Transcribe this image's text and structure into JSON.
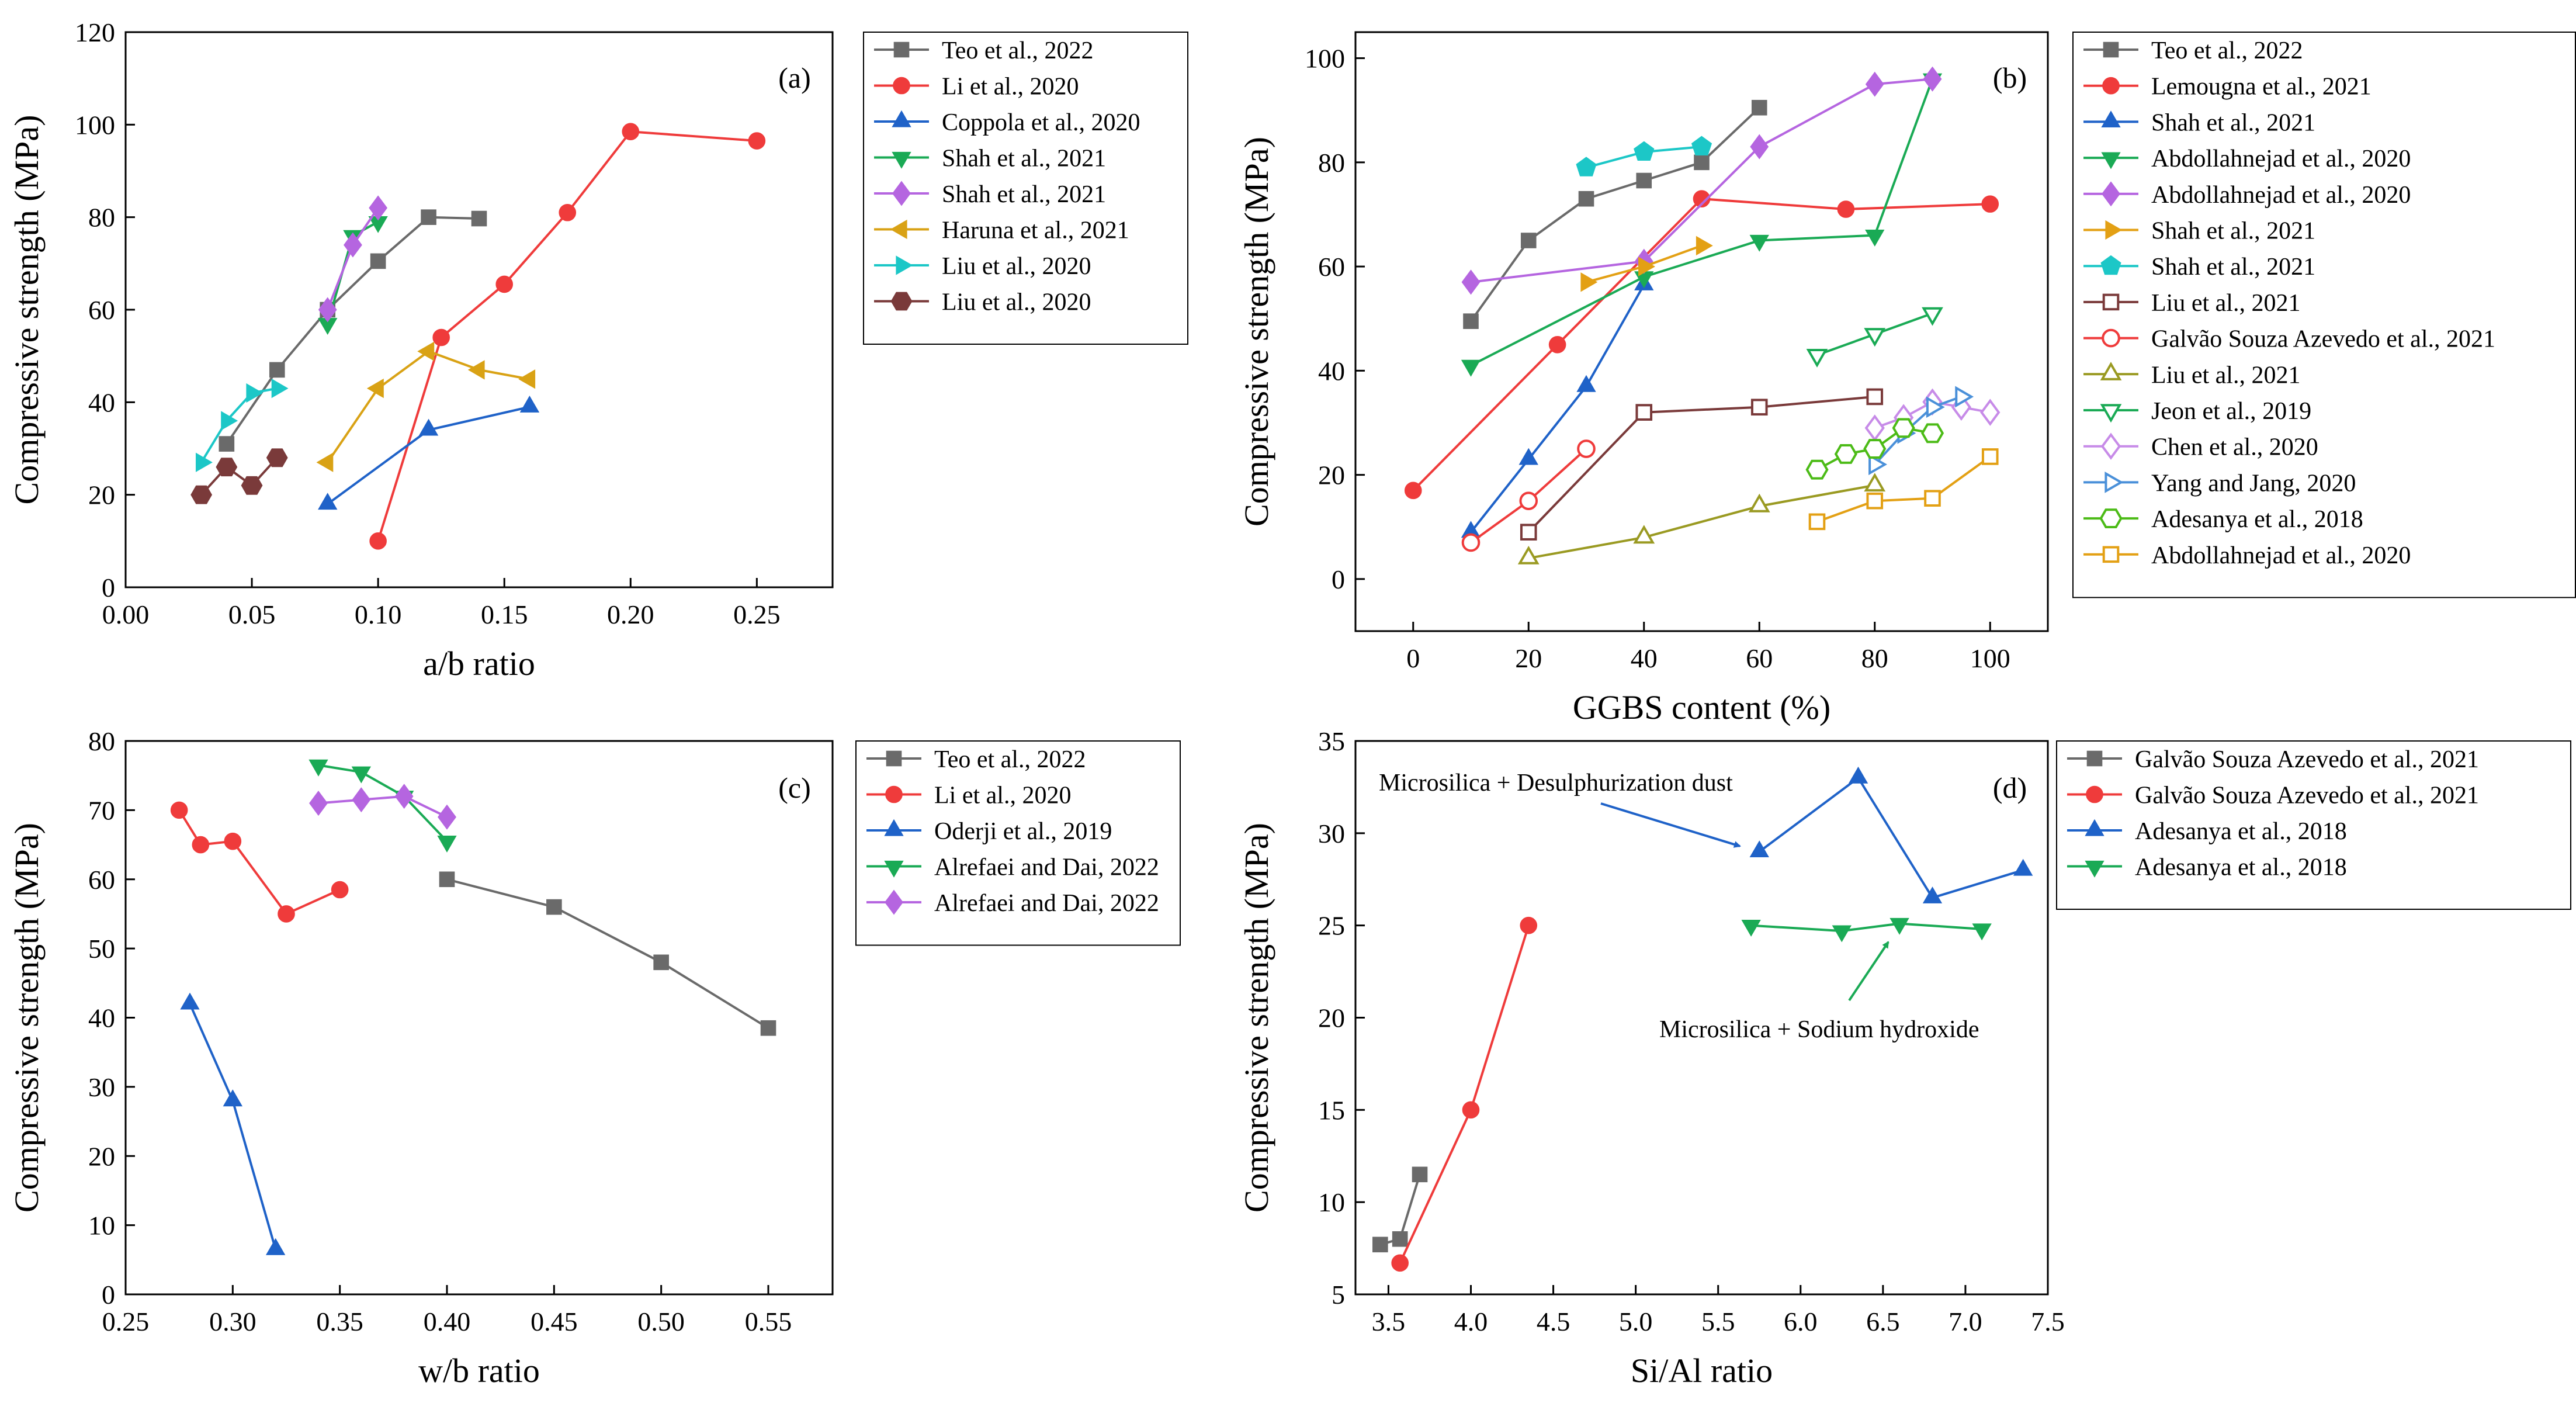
{
  "chart_data": [
    {
      "type": "line",
      "panel_label": "(a)",
      "xlabel": "a/b ratio",
      "ylabel": "Compressive strength (MPa)",
      "xlim": [
        0.0,
        0.28
      ],
      "ylim": [
        0,
        120
      ],
      "xticks": [
        0.0,
        0.05,
        0.1,
        0.15,
        0.2,
        0.25
      ],
      "xtick_labels": [
        "0.00",
        "0.05",
        "0.10",
        "0.15",
        "0.20",
        "0.25"
      ],
      "yticks": [
        0,
        20,
        40,
        60,
        80,
        100,
        120
      ],
      "ytick_labels": [
        "0",
        "20",
        "40",
        "60",
        "80",
        "100",
        "120"
      ],
      "series": [
        {
          "name": "Teo et al., 2022",
          "color": "#6a6a6a",
          "marker": "square",
          "fill": true,
          "x": [
            0.04,
            0.06,
            0.08,
            0.1,
            0.12,
            0.14
          ],
          "y": [
            31,
            47,
            60,
            70.5,
            80,
            79.7
          ]
        },
        {
          "name": "Li et al., 2020",
          "color": "#ef3b3b",
          "marker": "circle",
          "fill": true,
          "x": [
            0.1,
            0.125,
            0.15,
            0.175,
            0.2,
            0.25
          ],
          "y": [
            10,
            54,
            65.5,
            81,
            98.5,
            96.5
          ]
        },
        {
          "name": "Coppola et al., 2020",
          "color": "#1f62c8",
          "marker": "triangle-up",
          "fill": true,
          "x": [
            0.08,
            0.12,
            0.16
          ],
          "y": [
            18,
            34,
            39
          ]
        },
        {
          "name": "Shah et al., 2021",
          "color": "#1aaa55",
          "marker": "triangle-down",
          "fill": true,
          "x": [
            0.08,
            0.09,
            0.1
          ],
          "y": [
            57,
            76,
            79
          ]
        },
        {
          "name": "Shah et al., 2021",
          "color": "#b565e0",
          "marker": "diamond",
          "fill": true,
          "x": [
            0.08,
            0.09,
            0.1
          ],
          "y": [
            60,
            74,
            82
          ]
        },
        {
          "name": "Haruna et al., 2021",
          "color": "#d9a215",
          "marker": "triangle-left",
          "fill": true,
          "x": [
            0.08,
            0.1,
            0.12,
            0.14,
            0.16
          ],
          "y": [
            27,
            43,
            51,
            47,
            45
          ]
        },
        {
          "name": "Liu et al., 2020",
          "color": "#1cc7c7",
          "marker": "triangle-right",
          "fill": true,
          "x": [
            0.03,
            0.04,
            0.05,
            0.06
          ],
          "y": [
            27,
            36,
            42,
            43
          ]
        },
        {
          "name": "Liu et al., 2020",
          "color": "#7a3a3a",
          "marker": "hexagon",
          "fill": true,
          "x": [
            0.03,
            0.04,
            0.05,
            0.06
          ],
          "y": [
            20,
            26,
            22,
            28
          ]
        }
      ]
    },
    {
      "type": "line",
      "panel_label": "(b)",
      "xlabel": "GGBS content (%)",
      "ylabel": "Compressive strength (MPa)",
      "xlim": [
        -10,
        110
      ],
      "ylim": [
        -10,
        105
      ],
      "xticks": [
        0,
        20,
        40,
        60,
        80,
        100
      ],
      "xtick_labels": [
        "0",
        "20",
        "40",
        "60",
        "80",
        "100"
      ],
      "yticks": [
        0,
        20,
        40,
        60,
        80,
        100
      ],
      "ytick_labels": [
        "0",
        "20",
        "40",
        "60",
        "80",
        "100"
      ],
      "series": [
        {
          "name": "Teo et al., 2022",
          "color": "#6a6a6a",
          "marker": "square",
          "fill": true,
          "x": [
            10,
            20,
            30,
            40,
            50,
            60
          ],
          "y": [
            49.5,
            65,
            73,
            76.5,
            80,
            90.5
          ]
        },
        {
          "name": "Lemougna et al., 2021",
          "color": "#ef3b3b",
          "marker": "circle",
          "fill": true,
          "x": [
            0,
            25,
            50,
            75,
            100
          ],
          "y": [
            17,
            45,
            73,
            71,
            72
          ]
        },
        {
          "name": "Shah et al., 2021",
          "color": "#1f62c8",
          "marker": "triangle-up",
          "fill": true,
          "x": [
            10,
            20,
            30,
            40
          ],
          "y": [
            9,
            23,
            37,
            56.5
          ]
        },
        {
          "name": "Abdollahnejad et al., 2020",
          "color": "#1aaa55",
          "marker": "triangle-down",
          "fill": true,
          "x": [
            10,
            40,
            60,
            80,
            90
          ],
          "y": [
            41,
            58,
            65,
            66,
            96
          ]
        },
        {
          "name": "Abdollahnejad et al., 2020",
          "color": "#b565e0",
          "marker": "diamond",
          "fill": true,
          "x": [
            10,
            40,
            60,
            80,
            90
          ],
          "y": [
            57,
            61,
            83,
            95,
            96
          ]
        },
        {
          "name": "Shah et al., 2021",
          "color": "#e3a014",
          "marker": "triangle-right",
          "fill": true,
          "x": [
            30,
            40,
            50
          ],
          "y": [
            57,
            60,
            64
          ]
        },
        {
          "name": "Shah et al., 2021",
          "color": "#1cc7c7",
          "marker": "pentagon",
          "fill": true,
          "x": [
            30,
            40,
            50
          ],
          "y": [
            79,
            82,
            83
          ]
        },
        {
          "name": "Liu et al., 2021",
          "color": "#7a3a3a",
          "marker": "square",
          "fill": false,
          "x": [
            20,
            40,
            60,
            80
          ],
          "y": [
            9,
            32,
            33,
            35
          ]
        },
        {
          "name": "Galvão Souza Azevedo et al., 2021",
          "color": "#ef3b3b",
          "marker": "circle",
          "fill": false,
          "x": [
            10,
            20,
            30
          ],
          "y": [
            7,
            15,
            25
          ]
        },
        {
          "name": "Liu et al., 2021",
          "color": "#9a9a22",
          "marker": "triangle-up",
          "fill": false,
          "x": [
            20,
            40,
            60,
            80
          ],
          "y": [
            4,
            8,
            14,
            18
          ]
        },
        {
          "name": "Jeon et al., 2019",
          "color": "#1aaa55",
          "marker": "triangle-down",
          "fill": false,
          "x": [
            70,
            80,
            90
          ],
          "y": [
            43,
            47,
            51
          ]
        },
        {
          "name": "Chen et al., 2020",
          "color": "#c78be8",
          "marker": "diamond",
          "fill": false,
          "x": [
            80,
            85,
            90,
            95,
            100
          ],
          "y": [
            29,
            31,
            34,
            33,
            32
          ]
        },
        {
          "name": "Yang and Jang, 2020",
          "color": "#4a90d9",
          "marker": "triangle-right",
          "fill": false,
          "x": [
            80,
            85,
            90,
            95
          ],
          "y": [
            22,
            28,
            33,
            35
          ]
        },
        {
          "name": "Adesanya et al., 2018",
          "color": "#4cbb17",
          "marker": "hexagon",
          "fill": false,
          "x": [
            70,
            75,
            80,
            85,
            90
          ],
          "y": [
            21,
            24,
            25,
            29,
            28
          ]
        },
        {
          "name": "Abdollahnejad et al., 2020",
          "color": "#e3a014",
          "marker": "square",
          "fill": false,
          "x": [
            70,
            80,
            90,
            100
          ],
          "y": [
            11,
            15,
            15.5,
            23.5
          ]
        }
      ]
    },
    {
      "type": "line",
      "panel_label": "(c)",
      "xlabel": "w/b ratio",
      "ylabel": "Compressive strength (MPa)",
      "xlim": [
        0.25,
        0.58
      ],
      "ylim": [
        0,
        80
      ],
      "xticks": [
        0.25,
        0.3,
        0.35,
        0.4,
        0.45,
        0.5,
        0.55
      ],
      "xtick_labels": [
        "0.25",
        "0.30",
        "0.35",
        "0.40",
        "0.45",
        "0.50",
        "0.55"
      ],
      "yticks": [
        0,
        10,
        20,
        30,
        40,
        50,
        60,
        70,
        80
      ],
      "ytick_labels": [
        "0",
        "10",
        "20",
        "30",
        "40",
        "50",
        "60",
        "70",
        "80"
      ],
      "series": [
        {
          "name": "Teo et al., 2022",
          "color": "#6a6a6a",
          "marker": "square",
          "fill": true,
          "x": [
            0.4,
            0.45,
            0.5,
            0.55
          ],
          "y": [
            60,
            56,
            48,
            38.5
          ]
        },
        {
          "name": "Li et al., 2020",
          "color": "#ef3b3b",
          "marker": "circle",
          "fill": true,
          "x": [
            0.275,
            0.285,
            0.3,
            0.325,
            0.35
          ],
          "y": [
            70,
            65,
            65.5,
            55,
            58.5
          ]
        },
        {
          "name": "Oderji et al., 2019",
          "color": "#1f62c8",
          "marker": "triangle-up",
          "fill": true,
          "x": [
            0.28,
            0.3,
            0.32
          ],
          "y": [
            42,
            28,
            6.5
          ]
        },
        {
          "name": "Alrefaei and Dai, 2022",
          "color": "#1aaa55",
          "marker": "triangle-down",
          "fill": true,
          "x": [
            0.34,
            0.36,
            0.38,
            0.4
          ],
          "y": [
            76.5,
            75.5,
            72,
            65.5
          ]
        },
        {
          "name": "Alrefaei and Dai, 2022",
          "color": "#b565e0",
          "marker": "diamond",
          "fill": true,
          "x": [
            0.34,
            0.36,
            0.38,
            0.4
          ],
          "y": [
            71,
            71.5,
            72,
            69
          ]
        }
      ]
    },
    {
      "type": "line",
      "panel_label": "(d)",
      "xlabel": "Si/Al ratio",
      "ylabel": "Compressive strength (MPa)",
      "xlim": [
        3.3,
        7.5
      ],
      "ylim": [
        5,
        35
      ],
      "xticks": [
        3.5,
        4.0,
        4.5,
        5.0,
        5.5,
        6.0,
        6.5,
        7.0,
        7.5
      ],
      "xtick_labels": [
        "3.5",
        "4.0",
        "4.5",
        "5.0",
        "5.5",
        "6.0",
        "6.5",
        "7.0",
        "7.5"
      ],
      "yticks": [
        5,
        10,
        15,
        20,
        25,
        30,
        35
      ],
      "ytick_labels": [
        "5",
        "10",
        "15",
        "20",
        "25",
        "30",
        "35"
      ],
      "annotations": [
        {
          "text": "Microsilica + Desulphurization dust"
        },
        {
          "text": "Microsilica + Sodium hydroxide"
        }
      ],
      "series": [
        {
          "name": "Galvão Souza Azevedo et al., 2021",
          "color": "#6a6a6a",
          "marker": "square",
          "fill": true,
          "x": [
            3.45,
            3.57,
            3.69
          ],
          "y": [
            7.7,
            8.0,
            11.5
          ]
        },
        {
          "name": "Galvão Souza Azevedo et al., 2021",
          "color": "#ef3b3b",
          "marker": "circle",
          "fill": true,
          "x": [
            3.57,
            4.0,
            4.35
          ],
          "y": [
            6.7,
            15,
            25
          ]
        },
        {
          "name": "Adesanya et al., 2018",
          "color": "#1f62c8",
          "marker": "triangle-up",
          "fill": true,
          "x": [
            5.75,
            6.35,
            6.8,
            7.35
          ],
          "y": [
            29,
            33,
            26.5,
            28
          ]
        },
        {
          "name": "Adesanya et al., 2018",
          "color": "#1aaa55",
          "marker": "triangle-down",
          "fill": true,
          "x": [
            5.7,
            6.25,
            6.6,
            7.1
          ],
          "y": [
            25,
            24.7,
            25.1,
            24.8
          ]
        }
      ]
    }
  ]
}
